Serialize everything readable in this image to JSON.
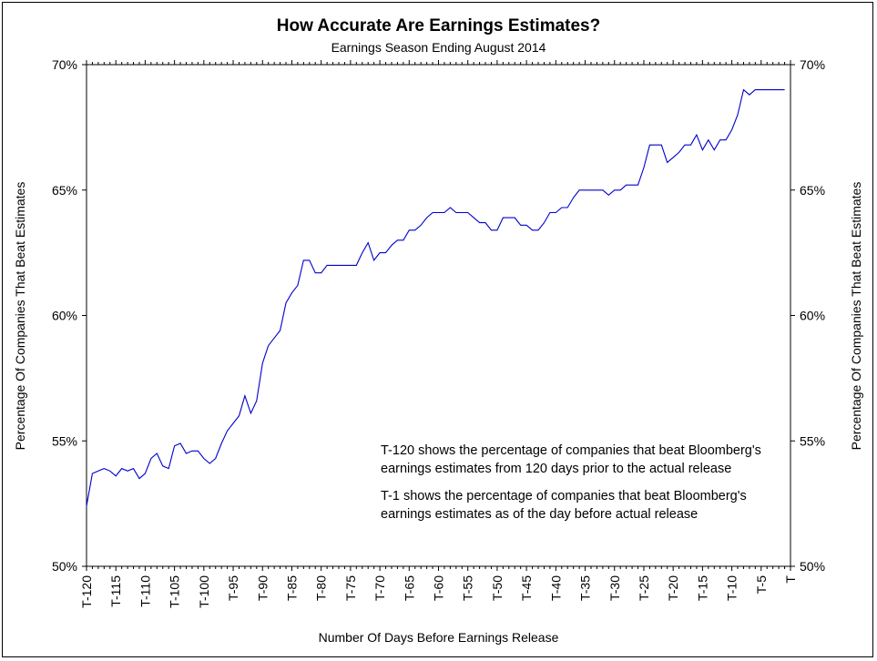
{
  "chart_data": {
    "type": "line",
    "title": "How Accurate Are Earnings Estimates?",
    "subtitle": "Earnings Season Ending August 2014",
    "xlabel": "Number Of Days Before Earnings Release",
    "ylabel": "Percentage Of Companies That Beat Estimates",
    "ylim": [
      50,
      70
    ],
    "xlim": [
      -120,
      0
    ],
    "y_ticks": [
      50,
      55,
      60,
      65,
      70
    ],
    "y_tick_labels": [
      "50%",
      "55%",
      "60%",
      "65%",
      "70%"
    ],
    "x_tick_values": [
      -120,
      -115,
      -110,
      -105,
      -100,
      -95,
      -90,
      -85,
      -80,
      -75,
      -70,
      -65,
      -60,
      -55,
      -50,
      -45,
      -40,
      -35,
      -30,
      -25,
      -20,
      -15,
      -10,
      -5,
      0
    ],
    "x_tick_labels": [
      "T-120",
      "T-115",
      "T-110",
      "T-105",
      "T-100",
      "T-95",
      "T-90",
      "T-85",
      "T-80",
      "T-75",
      "T-70",
      "T-65",
      "T-60",
      "T-55",
      "T-50",
      "T-45",
      "T-40",
      "T-35",
      "T-30",
      "T-25",
      "T-20",
      "T-15",
      "T-10",
      "T-5",
      "T"
    ],
    "grid": false,
    "series": [
      {
        "name": "Percentage of companies that beat estimates",
        "color": "#0000cc",
        "x": [
          -120,
          -119,
          -118,
          -117,
          -116,
          -115,
          -114,
          -113,
          -112,
          -111,
          -110,
          -109,
          -108,
          -107,
          -106,
          -105,
          -104,
          -103,
          -102,
          -101,
          -100,
          -99,
          -98,
          -97,
          -96,
          -95,
          -94,
          -93,
          -92,
          -91,
          -90,
          -89,
          -88,
          -87,
          -86,
          -85,
          -84,
          -83,
          -82,
          -81,
          -80,
          -79,
          -78,
          -77,
          -76,
          -75,
          -74,
          -73,
          -72,
          -71,
          -70,
          -69,
          -68,
          -67,
          -66,
          -65,
          -64,
          -63,
          -62,
          -61,
          -60,
          -59,
          -58,
          -57,
          -56,
          -55,
          -54,
          -53,
          -52,
          -51,
          -50,
          -49,
          -48,
          -47,
          -46,
          -45,
          -44,
          -43,
          -42,
          -41,
          -40,
          -39,
          -38,
          -37,
          -36,
          -35,
          -34,
          -33,
          -32,
          -31,
          -30,
          -29,
          -28,
          -27,
          -26,
          -25,
          -24,
          -23,
          -22,
          -21,
          -20,
          -19,
          -18,
          -17,
          -16,
          -15,
          -14,
          -13,
          -12,
          -11,
          -10,
          -9,
          -8,
          -7,
          -6,
          -5,
          -4,
          -3,
          -2,
          -1
        ],
        "values": [
          52.4,
          53.7,
          53.8,
          53.9,
          53.8,
          53.6,
          53.9,
          53.8,
          53.9,
          53.5,
          53.7,
          54.3,
          54.5,
          54.0,
          53.9,
          54.8,
          54.9,
          54.5,
          54.6,
          54.6,
          54.3,
          54.1,
          54.3,
          54.9,
          55.4,
          55.7,
          56.0,
          56.8,
          56.1,
          56.6,
          58.1,
          58.8,
          59.1,
          59.4,
          60.5,
          60.9,
          61.2,
          62.2,
          62.2,
          61.7,
          61.7,
          62.0,
          62.0,
          62.0,
          62.0,
          62.0,
          62.0,
          62.5,
          62.9,
          62.2,
          62.5,
          62.5,
          62.8,
          63.0,
          63.0,
          63.4,
          63.4,
          63.6,
          63.9,
          64.1,
          64.1,
          64.1,
          64.3,
          64.1,
          64.1,
          64.1,
          63.9,
          63.7,
          63.7,
          63.4,
          63.4,
          63.9,
          63.9,
          63.9,
          63.6,
          63.6,
          63.4,
          63.4,
          63.7,
          64.1,
          64.1,
          64.3,
          64.3,
          64.7,
          65.0,
          65.0,
          65.0,
          65.0,
          65.0,
          64.8,
          65.0,
          65.0,
          65.2,
          65.2,
          65.2,
          65.9,
          66.8,
          66.8,
          66.8,
          66.1,
          66.3,
          66.5,
          66.8,
          66.8,
          67.2,
          66.6,
          67.0,
          66.6,
          67.0,
          67.0,
          67.4,
          68.0,
          69.0,
          68.8,
          69.0,
          69.0,
          69.0,
          69.0,
          69.0,
          69.0
        ]
      }
    ],
    "annotations": [
      "T-120 shows the percentage of companies that beat Bloomberg's earnings estimates from 120 days prior to the actual release",
      "T-1 shows the percentage of companies that beat Bloomberg's earnings estimates as of the day before actual release"
    ]
  }
}
